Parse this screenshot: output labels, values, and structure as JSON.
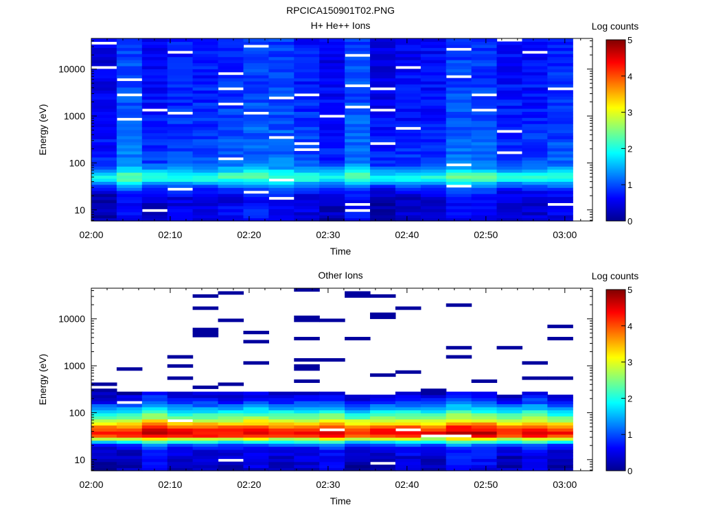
{
  "figure_title": "RPCICA150901T02.PNG",
  "colorbar": {
    "label": "Log counts",
    "ticks": [
      "0",
      "1",
      "2",
      "3",
      "4",
      "5"
    ],
    "range": [
      0,
      5
    ],
    "colormap": "jet"
  },
  "chart_data": [
    {
      "type": "heatmap",
      "title": "H+ He++ Ions",
      "xlabel": "Time",
      "ylabel": "Energy (eV)",
      "x_ticks": [
        "02:00",
        "02:10",
        "02:20",
        "02:30",
        "02:40",
        "02:50",
        "03:00"
      ],
      "y_ticks": [
        "10",
        "100",
        "1000",
        "10000"
      ],
      "y_scale": "log",
      "colorbar_label": "Log counts",
      "profile_energy_eV": [
        7,
        9,
        12,
        16,
        22,
        30,
        38,
        45,
        55,
        65,
        80,
        100,
        200,
        500,
        1000,
        3000,
        10000,
        40000
      ],
      "profile_log_counts": [
        0.45,
        0.55,
        0.5,
        0.45,
        0.6,
        0.9,
        1.5,
        2.1,
        2.1,
        1.7,
        1.3,
        1.05,
        0.95,
        0.9,
        0.85,
        0.8,
        0.75,
        0.75
      ]
    },
    {
      "type": "heatmap",
      "title": "Other Ions",
      "xlabel": "Time",
      "ylabel": "Energy (eV)",
      "x_ticks": [
        "02:00",
        "02:10",
        "02:20",
        "02:30",
        "02:40",
        "02:50",
        "03:00"
      ],
      "y_ticks": [
        "10",
        "100",
        "1000",
        "10000"
      ],
      "y_scale": "log",
      "colorbar_label": "Log counts",
      "profile_energy_eV": [
        7,
        9,
        12,
        16,
        20,
        25,
        28,
        32,
        36,
        42,
        50,
        60,
        75,
        95,
        120,
        160,
        220,
        280
      ],
      "profile_log_counts": [
        0.45,
        0.45,
        0.5,
        0.6,
        0.9,
        2.2,
        3.0,
        4.2,
        4.5,
        4.4,
        4.0,
        3.4,
        2.7,
        2.2,
        1.6,
        1.0,
        0.6,
        0.4
      ]
    }
  ]
}
